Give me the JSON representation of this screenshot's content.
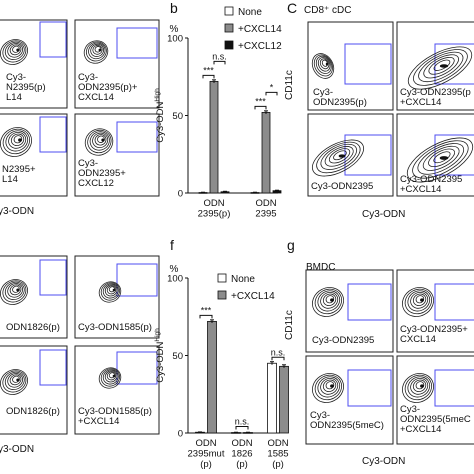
{
  "panel_letters": {
    "b": "b",
    "c": "C",
    "f": "f",
    "g": "g"
  },
  "titles": {
    "c": "CD8⁺ cDC",
    "g": "BMDC"
  },
  "flow_axis_labels": {
    "top_left_x": "y3-ODN",
    "bottom_left_x": "y3-ODN",
    "c_x": "Cy3-ODN",
    "c_y": "CD11c",
    "g_x": "Cy3-ODN",
    "g_y": "CD11c"
  },
  "flow_labels": {
    "a1": "Cy3-\nN2395(p)\nL14",
    "a2": "Cy3-\nODN2395(p)+\nCXCL14",
    "a3": "N2395+\nL14",
    "a4": "Cy3-\nODN2395+\nCXCL12",
    "c1": "Cy3-\nODN2395(p)",
    "c2": "Cy3-ODN2395(p\n+CXCL14",
    "c3": "Cy3-ODN2395",
    "c4": "Cy3-ODN2395\n+CXCL14",
    "e1": "ODN1826(p)",
    "e2": "Cy3-ODN1585(p)",
    "e3": "ODN1826(p)",
    "e4": "Cy3-ODN1585(p)\n+CXCL14",
    "g1": "Cy3-ODN2395",
    "g2": "Cy3-ODN2395+\nCXCL14",
    "g3": "Cy3-\nODN2395(5meC)",
    "g4": "Cy3-\nODN2395(5meC\n+CXCL14"
  },
  "chart_data": [
    {
      "type": "bar",
      "panel": "b",
      "ylabel": "Cy3-ODN^High",
      "unit_label": "%",
      "ylim": [
        0,
        100
      ],
      "yticks": [
        0,
        50,
        100
      ],
      "categories": [
        "ODN\n2395(p)",
        "ODN\n2395"
      ],
      "series": [
        {
          "name": "None",
          "color": "#ffffff",
          "values": [
            0.3,
            0.3
          ],
          "errors": [
            0.2,
            0.2
          ]
        },
        {
          "name": "+CXCL14",
          "color": "#8c8c8c",
          "values": [
            72,
            52
          ],
          "errors": [
            1,
            1
          ]
        },
        {
          "name": "+CXCL12",
          "color": "#111111",
          "values": [
            0.8,
            1.5
          ],
          "errors": [
            0.3,
            0.3
          ]
        }
      ],
      "annotations": [
        {
          "category": 0,
          "from": 0,
          "to": 1,
          "text": "***"
        },
        {
          "category": 0,
          "from": 1,
          "to": 2,
          "text": "n.s."
        },
        {
          "category": 1,
          "from": 0,
          "to": 1,
          "text": "***"
        },
        {
          "category": 1,
          "from": 1,
          "to": 2,
          "text": "*"
        }
      ],
      "legend": "top-right"
    },
    {
      "type": "bar",
      "panel": "f",
      "ylabel": "Cy3-ODN^High",
      "unit_label": "%",
      "ylim": [
        0,
        100
      ],
      "yticks": [
        0,
        50,
        100
      ],
      "categories": [
        "ODN\n2395mut\n(p)",
        "ODN\n1826\n(p)",
        "ODN\n1585\n(p)"
      ],
      "series": [
        {
          "name": "None",
          "color": "#ffffff",
          "values": [
            0.5,
            0.3,
            45
          ],
          "errors": [
            0.2,
            0.2,
            1
          ]
        },
        {
          "name": "+CXCL14",
          "color": "#8c8c8c",
          "values": [
            72,
            0.3,
            43
          ],
          "errors": [
            1,
            0.2,
            1
          ]
        }
      ],
      "annotations": [
        {
          "category": 0,
          "from": 0,
          "to": 1,
          "text": "***"
        },
        {
          "category": 1,
          "from": 0,
          "to": 1,
          "text": "n.s."
        },
        {
          "category": 2,
          "from": 0,
          "to": 1,
          "text": "n.s."
        }
      ],
      "legend": "top-right"
    }
  ]
}
